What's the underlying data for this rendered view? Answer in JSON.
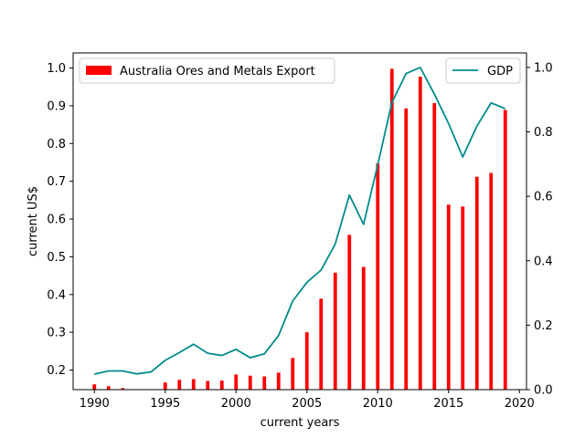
{
  "chart_data": {
    "type": "bar",
    "xlabel": "current years",
    "ylabel": "current US$",
    "xlim": [
      1988.5,
      2020.5
    ],
    "xticks": [
      1990,
      1995,
      2000,
      2005,
      2010,
      2015,
      2020
    ],
    "ylim_left": [
      0.148,
      1.04
    ],
    "yticks_left": [
      "0.2",
      "0.3",
      "0.4",
      "0.5",
      "0.6",
      "0.7",
      "0.8",
      "0.9",
      "1.0"
    ],
    "ylim_right": [
      0.0,
      1.045
    ],
    "yticks_right": [
      "0.0",
      "0.2",
      "0.4",
      "0.6",
      "0.8",
      "1.0"
    ],
    "legend_left_position": "upper-left",
    "legend_right_position": "upper-right",
    "grid": false,
    "series": [
      {
        "name": "Australia Ores and Metals Export",
        "kind": "bar",
        "axis": "left",
        "color": "#ff0000",
        "x": [
          1990,
          1991,
          1992,
          1993,
          1994,
          1995,
          1996,
          1997,
          1998,
          1999,
          2000,
          2001,
          2002,
          2003,
          2004,
          2005,
          2006,
          2007,
          2008,
          2009,
          2010,
          2011,
          2012,
          2013,
          2014,
          2015,
          2016,
          2017,
          2018,
          2019
        ],
        "values": [
          0.162,
          0.157,
          0.152,
          0.148,
          0.148,
          0.167,
          0.174,
          0.176,
          0.171,
          0.172,
          0.188,
          0.185,
          0.183,
          0.193,
          0.232,
          0.3,
          0.389,
          0.458,
          0.558,
          0.473,
          0.747,
          0.998,
          0.893,
          0.977,
          0.907,
          0.638,
          0.633,
          0.712,
          0.722,
          0.889
        ]
      },
      {
        "name": "GDP",
        "kind": "line",
        "axis": "right",
        "color": "#008b8b",
        "x": [
          1990,
          1991,
          1992,
          1993,
          1994,
          1995,
          1996,
          1997,
          1998,
          1999,
          2000,
          2001,
          2002,
          2003,
          2004,
          2005,
          2006,
          2007,
          2008,
          2009,
          2010,
          2011,
          2012,
          2013,
          2014,
          2015,
          2016,
          2017,
          2018,
          2019
        ],
        "values": [
          0.048,
          0.058,
          0.058,
          0.049,
          0.055,
          0.091,
          0.115,
          0.141,
          0.113,
          0.106,
          0.125,
          0.099,
          0.111,
          0.168,
          0.275,
          0.333,
          0.371,
          0.452,
          0.604,
          0.513,
          0.698,
          0.891,
          0.981,
          1.0,
          0.917,
          0.826,
          0.722,
          0.818,
          0.89,
          0.872
        ]
      }
    ]
  }
}
